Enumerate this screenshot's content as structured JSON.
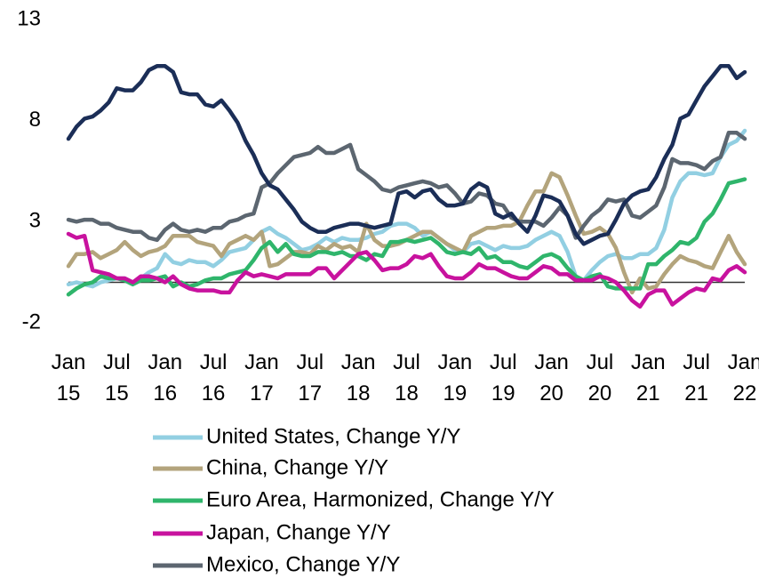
{
  "chart_data": {
    "type": "line",
    "categories": [
      "Jan 15",
      null,
      null,
      null,
      null,
      null,
      "Jul 15",
      null,
      null,
      null,
      null,
      null,
      "Jan 16",
      null,
      null,
      null,
      null,
      null,
      "Jul 16",
      null,
      null,
      null,
      null,
      null,
      "Jan 17",
      null,
      null,
      null,
      null,
      null,
      "Jul 17",
      null,
      null,
      null,
      null,
      null,
      "Jan 18",
      null,
      null,
      null,
      null,
      null,
      "Jul 18",
      null,
      null,
      null,
      null,
      null,
      "Jan 19",
      null,
      null,
      null,
      null,
      null,
      "Jul 19",
      null,
      null,
      null,
      null,
      null,
      "Jan 20",
      null,
      null,
      null,
      null,
      null,
      "Jul 20",
      null,
      null,
      null,
      null,
      null,
      "Jan 21",
      null,
      null,
      null,
      null,
      null,
      "Jul 21",
      null,
      null,
      null,
      null,
      null,
      "Jan 22"
    ],
    "series": [
      {
        "name": "United States, Change Y/Y",
        "color": "#92cfe2",
        "values": [
          -0.1,
          0,
          -0.1,
          -0.2,
          0,
          0.1,
          0.2,
          0.2,
          0,
          0.2,
          0.5,
          0.7,
          1.4,
          1.0,
          0.9,
          1.1,
          1.0,
          1.0,
          0.8,
          1.1,
          1.5,
          1.6,
          1.7,
          2.1,
          2.5,
          2.7,
          2.4,
          2.2,
          1.9,
          1.6,
          1.7,
          1.9,
          2.2,
          2.0,
          2.2,
          2.1,
          2.1,
          2.2,
          2.4,
          2.5,
          2.8,
          2.9,
          2.9,
          2.7,
          2.3,
          2.5,
          2.2,
          1.9,
          1.6,
          1.5,
          1.9,
          2.0,
          1.8,
          1.6,
          1.8,
          1.7,
          1.7,
          1.8,
          2.1,
          2.3,
          2.5,
          2.3,
          1.5,
          0.3,
          0.1,
          0.6,
          1.0,
          1.3,
          1.4,
          1.2,
          1.2,
          1.4,
          1.4,
          1.7,
          2.6,
          4.2,
          5.0,
          5.4,
          5.4,
          5.3,
          5.4,
          6.2,
          6.8,
          7.0,
          7.5
        ]
      },
      {
        "name": "China, Change Y/Y",
        "color": "#b3a47c",
        "values": [
          0.8,
          1.4,
          1.4,
          1.5,
          1.2,
          1.4,
          1.6,
          2.0,
          1.6,
          1.3,
          1.5,
          1.6,
          1.8,
          2.3,
          2.3,
          2.3,
          2.0,
          1.9,
          1.8,
          1.3,
          1.9,
          2.1,
          2.3,
          2.1,
          2.5,
          0.8,
          0.9,
          1.2,
          1.5,
          1.5,
          1.4,
          1.8,
          1.6,
          1.9,
          1.7,
          1.8,
          1.5,
          2.9,
          2.1,
          1.8,
          1.8,
          1.9,
          2.1,
          2.3,
          2.5,
          2.5,
          2.2,
          1.9,
          1.7,
          1.5,
          2.3,
          2.5,
          2.7,
          2.7,
          2.8,
          2.8,
          3.0,
          3.8,
          4.5,
          4.5,
          5.4,
          5.2,
          4.3,
          3.3,
          2.4,
          2.5,
          2.7,
          2.4,
          1.7,
          0.5,
          -0.5,
          0.2,
          -0.3,
          -0.2,
          0.4,
          0.9,
          1.3,
          1.1,
          1.0,
          0.8,
          0.7,
          1.5,
          2.3,
          1.5,
          0.9
        ]
      },
      {
        "name": "Euro Area, Harmonized, Change Y/Y",
        "color": "#2fb56b",
        "values": [
          -0.6,
          -0.3,
          -0.1,
          0,
          0.3,
          0.2,
          0.2,
          0.1,
          -0.1,
          0.1,
          0.1,
          0.2,
          0.3,
          -0.2,
          0,
          -0.2,
          -0.1,
          0.1,
          0.2,
          0.2,
          0.4,
          0.5,
          0.6,
          1.1,
          1.7,
          2.0,
          1.5,
          1.9,
          1.4,
          1.3,
          1.3,
          1.5,
          1.5,
          1.4,
          1.5,
          1.3,
          1.3,
          1.1,
          1.4,
          1.3,
          2.0,
          2.0,
          2.1,
          2.0,
          2.1,
          2.2,
          1.9,
          1.5,
          1.4,
          1.5,
          1.4,
          1.7,
          1.2,
          1.3,
          1.0,
          1.0,
          0.8,
          0.7,
          1.0,
          1.3,
          1.4,
          1.2,
          0.7,
          0.3,
          0.1,
          0.3,
          0.4,
          -0.2,
          -0.3,
          -0.3,
          -0.3,
          -0.3,
          0.9,
          0.9,
          1.3,
          1.6,
          2.0,
          1.9,
          2.2,
          3.0,
          3.4,
          4.1,
          4.9,
          5.0,
          5.1
        ]
      },
      {
        "name": "Japan, Change Y/Y",
        "color": "#c8129e",
        "values": [
          2.4,
          2.2,
          2.3,
          0.6,
          0.5,
          0.4,
          0.2,
          0.2,
          0,
          0.3,
          0.3,
          0.2,
          0,
          0.3,
          -0.1,
          -0.3,
          -0.4,
          -0.4,
          -0.4,
          -0.5,
          -0.5,
          0.1,
          0.5,
          0.3,
          0.4,
          0.3,
          0.2,
          0.4,
          0.4,
          0.4,
          0.4,
          0.7,
          0.7,
          0.2,
          0.6,
          1.0,
          1.4,
          1.5,
          1.1,
          0.6,
          0.7,
          0.7,
          0.9,
          1.3,
          1.2,
          1.4,
          0.8,
          0.3,
          0.2,
          0.2,
          0.5,
          0.9,
          0.7,
          0.7,
          0.5,
          0.3,
          0.2,
          0.2,
          0.5,
          0.8,
          0.7,
          0.4,
          0.4,
          0.1,
          0.1,
          0.1,
          0.3,
          0.2,
          0,
          -0.4,
          -0.9,
          -1.2,
          -0.6,
          -0.4,
          -0.4,
          -1.1,
          -0.8,
          -0.5,
          -0.3,
          -0.4,
          0.2,
          0.1,
          0.6,
          0.8,
          0.5
        ]
      },
      {
        "name": "Mexico, Change Y/Y",
        "color": "#5c6670",
        "values": [
          3.1,
          3.0,
          3.1,
          3.1,
          2.9,
          2.9,
          2.7,
          2.6,
          2.5,
          2.5,
          2.2,
          2.1,
          2.6,
          2.9,
          2.6,
          2.5,
          2.6,
          2.5,
          2.7,
          2.7,
          3.0,
          3.1,
          3.3,
          3.4,
          4.7,
          4.9,
          5.4,
          5.8,
          6.2,
          6.3,
          6.4,
          6.7,
          6.4,
          6.4,
          6.6,
          6.8,
          5.6,
          5.3,
          5.0,
          4.6,
          4.5,
          4.7,
          4.8,
          4.9,
          5.0,
          4.9,
          4.7,
          4.8,
          4.4,
          3.9,
          4.0,
          4.4,
          4.3,
          3.9,
          3.8,
          3.2,
          3.0,
          3.0,
          3.0,
          2.8,
          3.2,
          3.7,
          3.3,
          2.2,
          2.8,
          3.3,
          3.6,
          4.1,
          4.0,
          4.1,
          3.3,
          3.2,
          3.5,
          3.8,
          4.7,
          6.1,
          5.9,
          5.9,
          5.8,
          5.6,
          6.0,
          6.2,
          7.4,
          7.4,
          7.1
        ]
      },
      {
        "color": "#1b2e57",
        "values": [
          7.1,
          7.7,
          8.1,
          8.2,
          8.5,
          8.9,
          9.6,
          9.5,
          9.5,
          9.9,
          10.5,
          10.7,
          10.7,
          10.4,
          9.4,
          9.3,
          9.3,
          8.8,
          8.7,
          9.0,
          8.5,
          7.9,
          7.0,
          6.3,
          5.4,
          4.8,
          4.6,
          4.1,
          3.6,
          3.0,
          2.7,
          2.5,
          2.5,
          2.7,
          2.8,
          2.9,
          2.9,
          2.8,
          2.7,
          2.8,
          2.9,
          4.4,
          4.5,
          4.2,
          4.5,
          4.6,
          4.1,
          3.8,
          3.8,
          3.9,
          4.6,
          4.9,
          4.7,
          3.4,
          3.2,
          3.4,
          2.9,
          2.5,
          3.3,
          4.3,
          4.2,
          4.0,
          3.3,
          2.4,
          1.9,
          2.1,
          2.3,
          2.4,
          3.1,
          3.9,
          4.3,
          4.5,
          4.6,
          5.2,
          6.1,
          6.8,
          8.1,
          8.3,
          9.0,
          9.7,
          10.2,
          10.7,
          10.7,
          10.1,
          10.4
        ]
      }
    ],
    "ylim": [
      -2,
      13
    ],
    "yticks": [
      -2,
      3,
      8,
      13
    ],
    "grid": false
  }
}
